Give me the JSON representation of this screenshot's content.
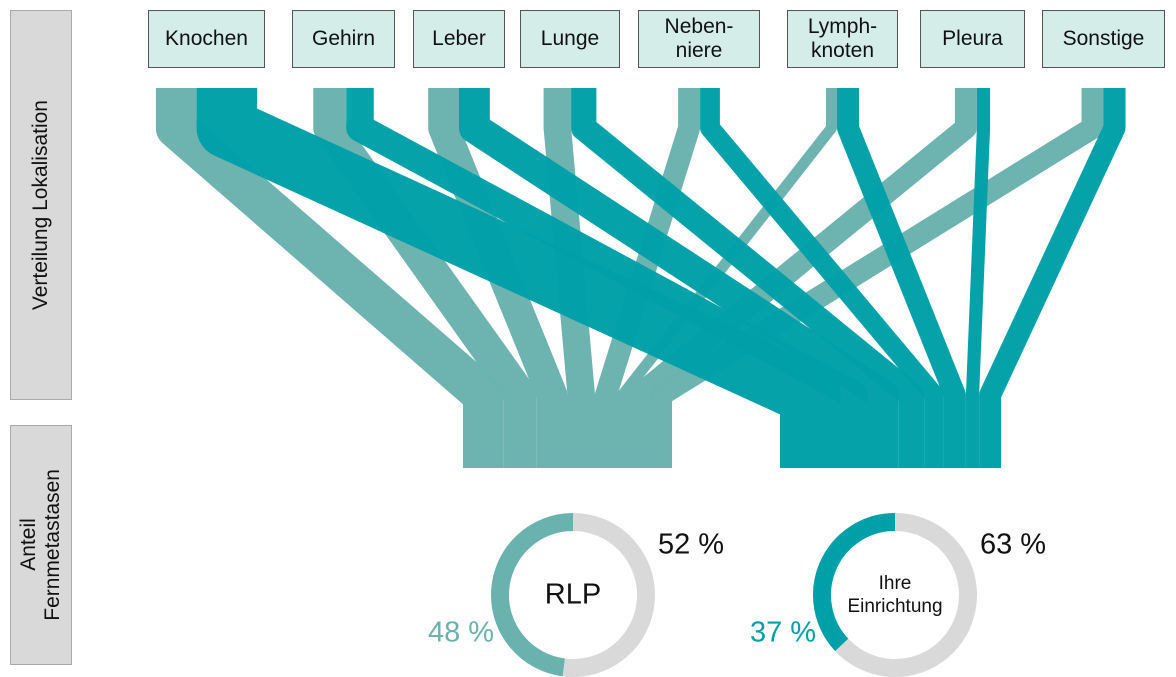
{
  "side_labels": [
    "Verteilung Lokalisation",
    "Anteil\nFernmetastasen"
  ],
  "chart_data": [
    {
      "type": "sankey",
      "categories": [
        "Knochen",
        "Gehirn",
        "Leber",
        "Lunge",
        "Neben-\nniere",
        "Lymph-\nknoten",
        "Pleura",
        "Sonstige"
      ],
      "series": [
        {
          "color": "#6ab2ae",
          "values": [
            37,
            30,
            28,
            25,
            20,
            10,
            20,
            20
          ]
        },
        {
          "color": "#00a0a8",
          "values": [
            55,
            25,
            28,
            23,
            18,
            20,
            12,
            20
          ]
        }
      ]
    },
    {
      "type": "donut",
      "center_label": "RLP",
      "values": [
        48,
        52
      ],
      "value_labels": [
        "48 %",
        "52 %"
      ],
      "colors": [
        "#6ab2ae",
        "#d9d9d9"
      ]
    },
    {
      "type": "donut",
      "center_label": "Ihre\nEinrichtung",
      "values": [
        37,
        63
      ],
      "value_labels": [
        "37 %",
        "63 %"
      ],
      "colors": [
        "#00a0a8",
        "#d9d9d9"
      ]
    }
  ]
}
